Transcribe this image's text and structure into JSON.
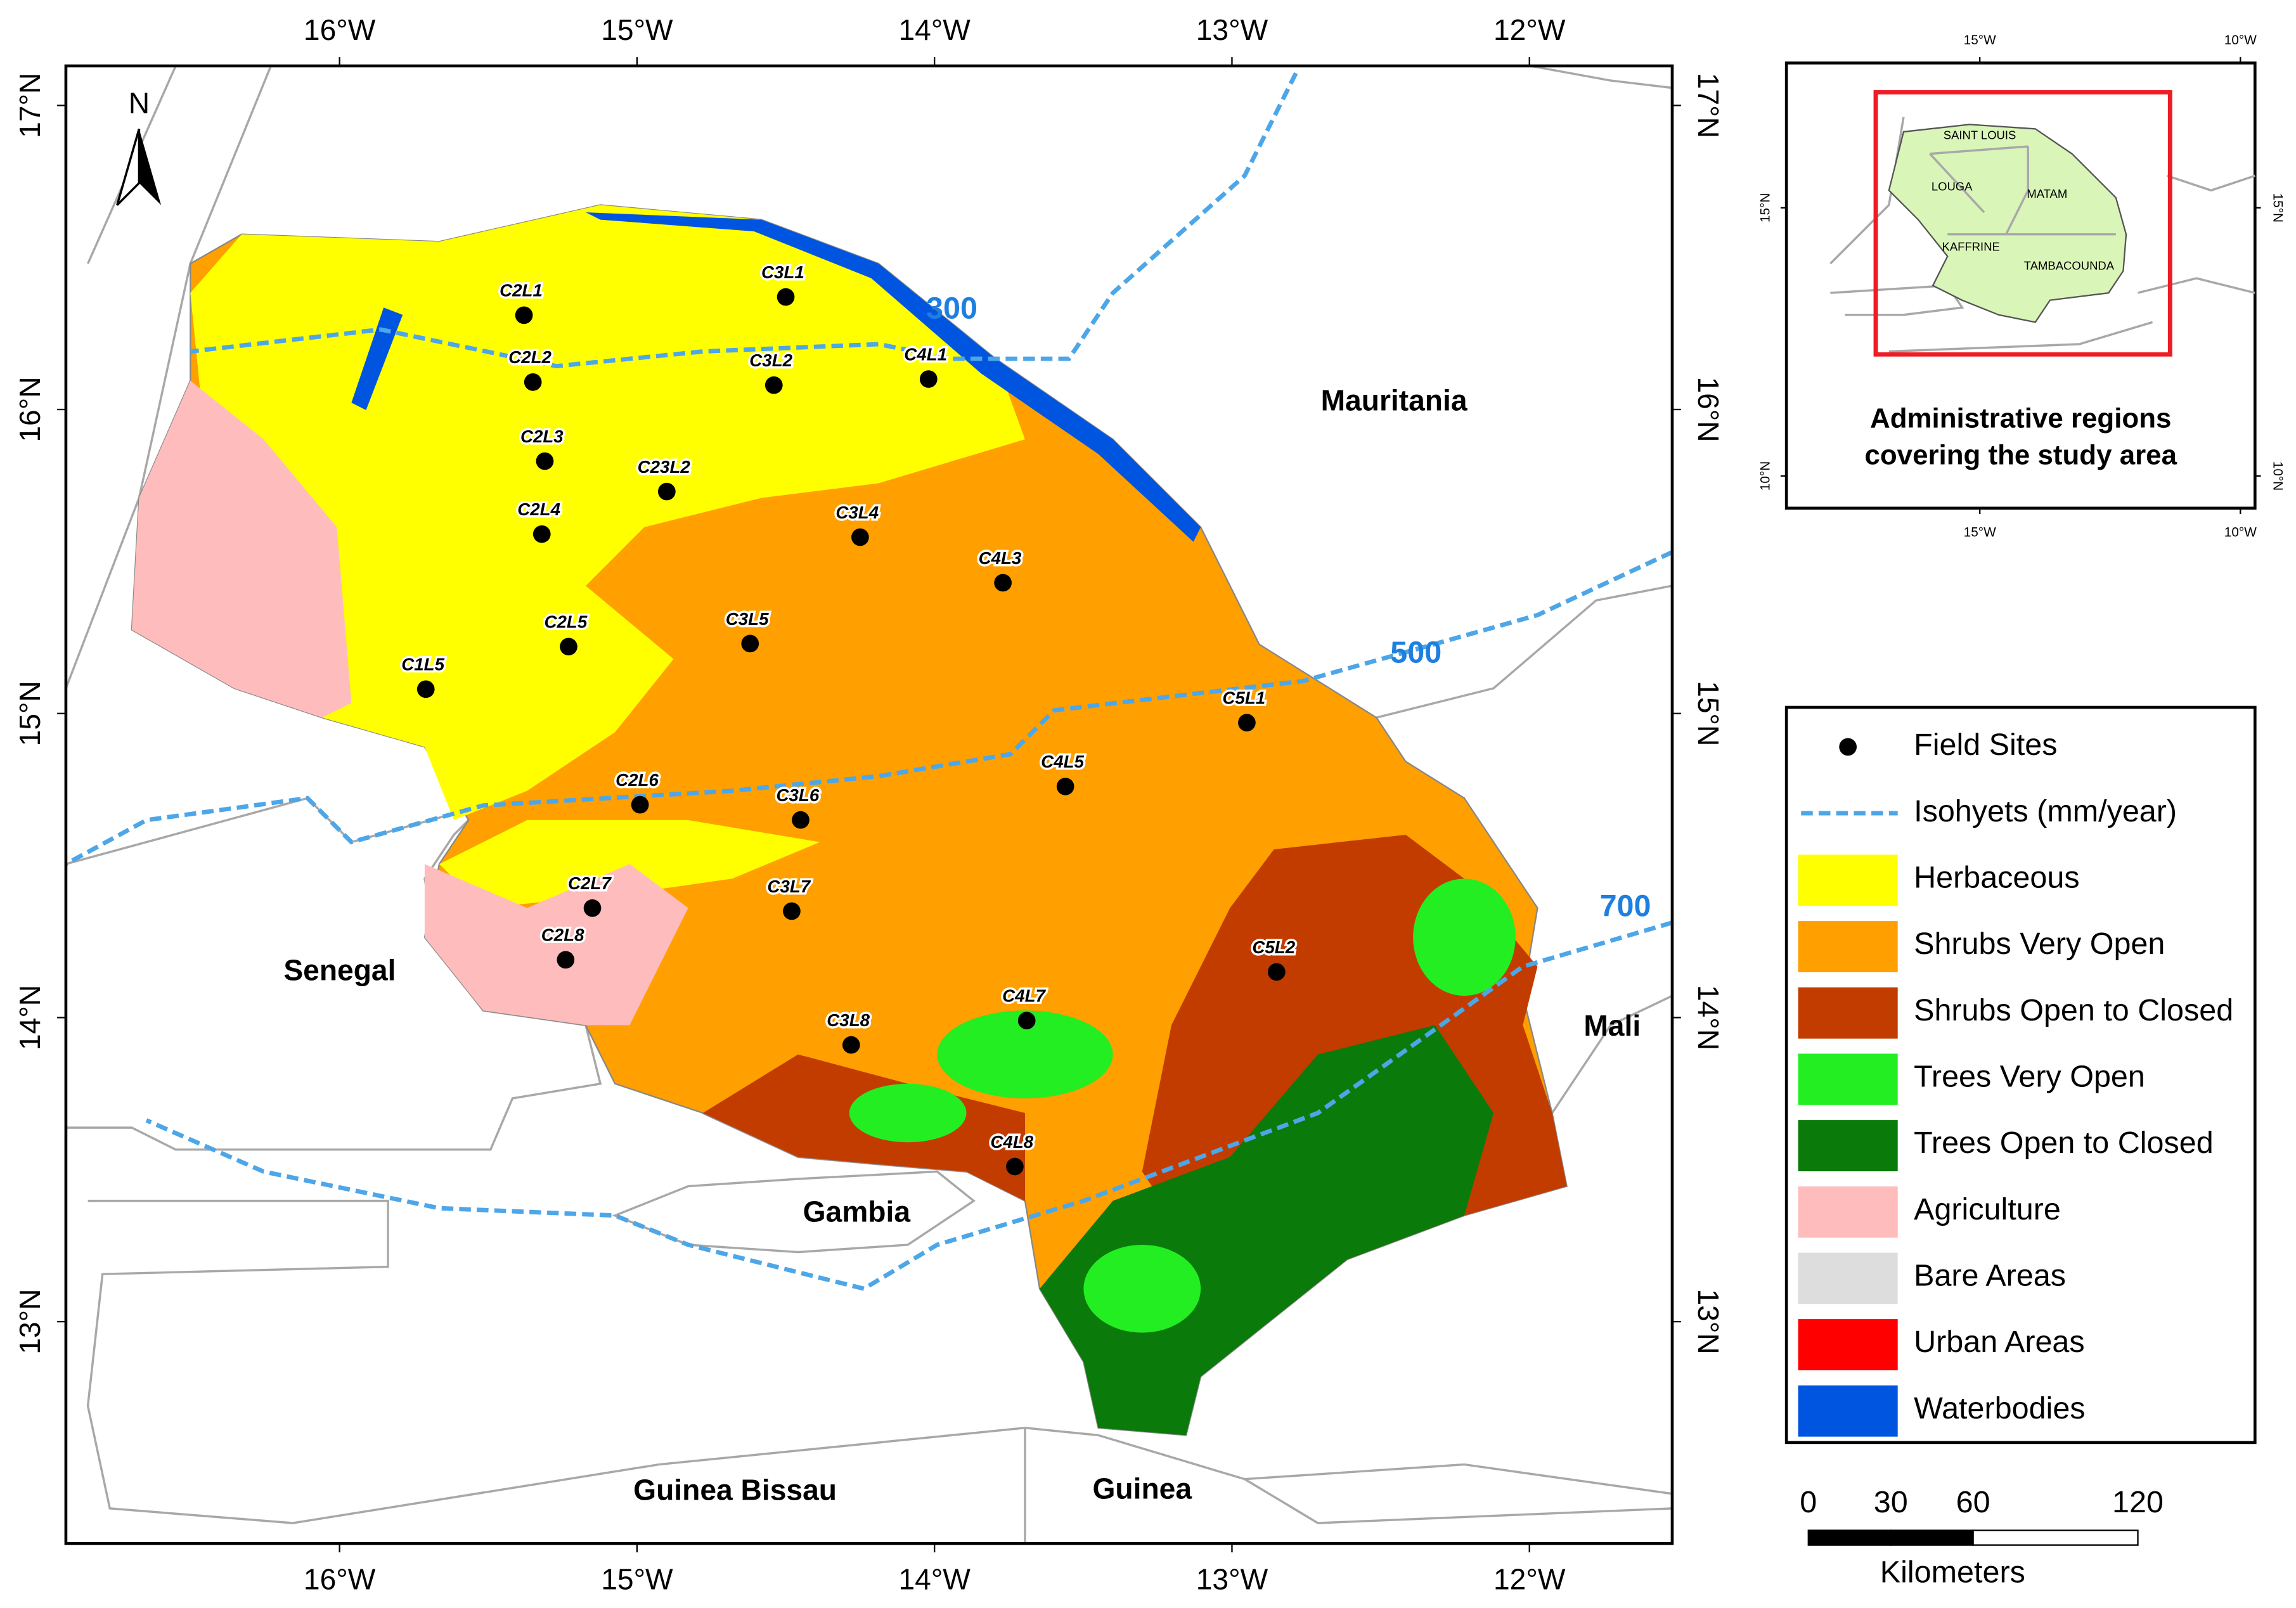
{
  "map": {
    "type": "map",
    "xlim": [
      -16.92,
      -11.52
    ],
    "ylim": [
      12.27,
      17.13
    ],
    "xticks": [
      {
        "value": -16,
        "label": "16°W"
      },
      {
        "value": -15,
        "label": "15°W"
      },
      {
        "value": -14,
        "label": "14°W"
      },
      {
        "value": -13,
        "label": "13°W"
      },
      {
        "value": -12,
        "label": "12°W"
      }
    ],
    "yticks": [
      {
        "value": 13,
        "label": "13°N"
      },
      {
        "value": 14,
        "label": "14°N"
      },
      {
        "value": 15,
        "label": "15°N"
      },
      {
        "value": 16,
        "label": "16°N"
      },
      {
        "value": 17,
        "label": "17°N"
      }
    ],
    "north": "N",
    "countries": [
      "Mauritania",
      "Senegal",
      "Mali",
      "Gambia",
      "Guinea Bissau",
      "Guinea"
    ],
    "isohyets": [
      300,
      500,
      700
    ],
    "sites": [
      {
        "name": "C2L1",
        "lon": -15.38,
        "lat": 16.31
      },
      {
        "name": "C3L1",
        "lon": -14.5,
        "lat": 16.37
      },
      {
        "name": "C2L2",
        "lon": -15.35,
        "lat": 16.09
      },
      {
        "name": "C3L2",
        "lon": -14.54,
        "lat": 16.08
      },
      {
        "name": "C4L1",
        "lon": -14.02,
        "lat": 16.1
      },
      {
        "name": "C2L3",
        "lon": -15.31,
        "lat": 15.83
      },
      {
        "name": "C23L2",
        "lon": -14.9,
        "lat": 15.73
      },
      {
        "name": "C2L4",
        "lon": -15.32,
        "lat": 15.59
      },
      {
        "name": "C3L4",
        "lon": -14.25,
        "lat": 15.58
      },
      {
        "name": "C4L3",
        "lon": -13.77,
        "lat": 15.43
      },
      {
        "name": "C2L5",
        "lon": -15.23,
        "lat": 15.22
      },
      {
        "name": "C3L5",
        "lon": -14.62,
        "lat": 15.23
      },
      {
        "name": "C1L5",
        "lon": -15.71,
        "lat": 15.08
      },
      {
        "name": "C5L1",
        "lon": -12.95,
        "lat": 14.97
      },
      {
        "name": "C4L5",
        "lon": -13.56,
        "lat": 14.76
      },
      {
        "name": "C2L6",
        "lon": -14.99,
        "lat": 14.7
      },
      {
        "name": "C3L6",
        "lon": -14.45,
        "lat": 14.65
      },
      {
        "name": "C2L7",
        "lon": -15.15,
        "lat": 14.36
      },
      {
        "name": "C3L7",
        "lon": -14.48,
        "lat": 14.35
      },
      {
        "name": "C2L8",
        "lon": -15.24,
        "lat": 14.19
      },
      {
        "name": "C5L2",
        "lon": -12.85,
        "lat": 14.15
      },
      {
        "name": "C4L7",
        "lon": -13.69,
        "lat": 13.99
      },
      {
        "name": "C3L8",
        "lon": -14.28,
        "lat": 13.91
      },
      {
        "name": "C4L8",
        "lon": -13.73,
        "lat": 13.51
      }
    ]
  },
  "legend": {
    "items": [
      {
        "label": "Field Sites",
        "color": "#000000"
      },
      {
        "label": "Isohyets (mm/year)",
        "color": "#4da6e8"
      },
      {
        "label": "Herbaceous",
        "color": "#ffff00"
      },
      {
        "label": "Shrubs Very Open",
        "color": "#ff9f00"
      },
      {
        "label": "Shrubs Open to Closed",
        "color": "#c23c00"
      },
      {
        "label": "Trees Very Open",
        "color": "#22ee22"
      },
      {
        "label": "Trees Open to Closed",
        "color": "#0a7a0a"
      },
      {
        "label": "Agriculture",
        "color": "#ffbcbc"
      },
      {
        "label": "Bare Areas",
        "color": "#dddddd"
      },
      {
        "label": "Urban Areas",
        "color": "#ff0000"
      },
      {
        "label": "Waterbodies",
        "color": "#0055e0"
      }
    ]
  },
  "scale_bar": {
    "ticks": [
      0,
      30,
      60,
      120
    ],
    "unit": "Kilometers"
  },
  "inset": {
    "xlim": [
      -18.71,
      -9.72
    ],
    "ylim": [
      9.4,
      17.7
    ],
    "xticks": [
      {
        "value": -15,
        "label": "15°W"
      },
      {
        "value": -10,
        "label": "10°W"
      }
    ],
    "yticks": [
      {
        "value": 10,
        "label": "10°N"
      },
      {
        "value": 15,
        "label": "15°N"
      }
    ],
    "regions": [
      "SAINT LOUIS",
      "LOUGA",
      "MATAM",
      "KAFFRINE",
      "TAMBACOUNDA"
    ],
    "title": [
      "Administrative regions",
      "covering the study area"
    ]
  }
}
